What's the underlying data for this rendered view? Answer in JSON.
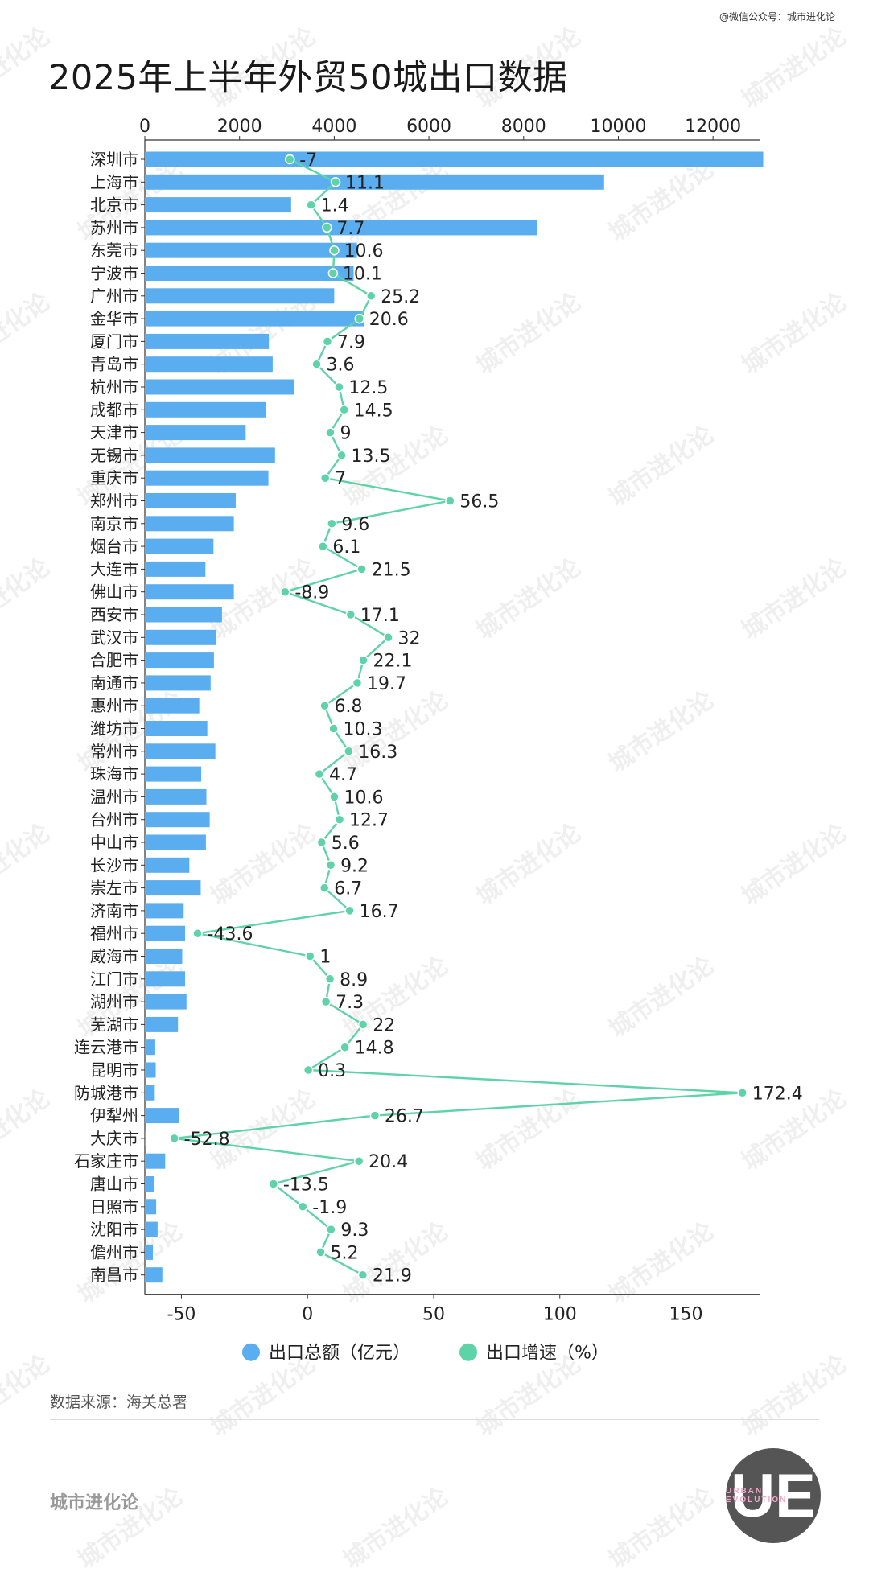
{
  "header": {
    "wechat": "@微信公众号：城市进化论",
    "title": "2025年上半年外贸50城出口数据"
  },
  "watermark_text": "城市进化论",
  "footer": {
    "source": "数据来源：海关总署",
    "brand": "城市进化论",
    "logo_text": "UE",
    "logo_sub": "URBAN EVOLUTION"
  },
  "colors": {
    "bar": "#5aaef0",
    "line": "#5fd3a8",
    "axis": "#333333",
    "text": "#222222"
  },
  "chart_data": {
    "type": "bar",
    "orientation": "horizontal",
    "title": "2025年上半年外贸50城出口数据",
    "categories": [
      "深圳市",
      "上海市",
      "北京市",
      "苏州市",
      "东莞市",
      "宁波市",
      "广州市",
      "金华市",
      "厦门市",
      "青岛市",
      "杭州市",
      "成都市",
      "天津市",
      "无锡市",
      "重庆市",
      "郑州市",
      "南京市",
      "烟台市",
      "大连市",
      "佛山市",
      "西安市",
      "武汉市",
      "合肥市",
      "南通市",
      "惠州市",
      "潍坊市",
      "常州市",
      "珠海市",
      "温州市",
      "台州市",
      "中山市",
      "长沙市",
      "崇左市",
      "济南市",
      "福州市",
      "威海市",
      "江门市",
      "湖州市",
      "芜湖市",
      "连云港市",
      "昆明市",
      "防城港市",
      "伊犁州",
      "大庆市",
      "石家庄市",
      "唐山市",
      "日照市",
      "沈阳市",
      "儋州市",
      "南昌市"
    ],
    "series": [
      {
        "name": "出口总额（亿元）",
        "axis": "top",
        "values": [
          13060,
          9700,
          3090,
          8280,
          4480,
          4410,
          4000,
          4630,
          2620,
          2700,
          3150,
          2560,
          2130,
          2750,
          2610,
          1920,
          1880,
          1450,
          1280,
          1880,
          1630,
          1500,
          1460,
          1390,
          1150,
          1320,
          1490,
          1190,
          1300,
          1370,
          1290,
          940,
          1180,
          820,
          850,
          790,
          850,
          880,
          700,
          220,
          230,
          210,
          720,
          30,
          430,
          200,
          240,
          270,
          170,
          370
        ]
      },
      {
        "name": "出口增速（%）",
        "axis": "bottom",
        "values": [
          -7,
          11.1,
          1.4,
          7.7,
          10.6,
          10.1,
          25.2,
          20.6,
          7.9,
          3.6,
          12.5,
          14.5,
          9,
          13.5,
          7,
          56.5,
          9.6,
          6.1,
          21.5,
          -8.9,
          17.1,
          32,
          22.1,
          19.7,
          6.8,
          10.3,
          16.3,
          4.7,
          10.6,
          12.7,
          5.6,
          9.2,
          6.7,
          16.7,
          -43.6,
          1,
          8.9,
          7.3,
          22,
          14.8,
          0.3,
          172.4,
          26.7,
          -52.8,
          20.4,
          -13.5,
          -1.9,
          9.3,
          5.2,
          21.9
        ]
      }
    ],
    "top_axis": {
      "ticks": [
        0,
        2000,
        4000,
        6000,
        8000,
        10000,
        12000
      ],
      "range": [
        0,
        13000
      ]
    },
    "bottom_axis": {
      "ticks": [
        -50,
        0,
        50,
        100,
        150
      ],
      "range": [
        -64.5,
        179.5
      ]
    },
    "legend": [
      "出口总额（亿元）",
      "出口增速（%）"
    ],
    "legend_position": "bottom-center",
    "grid": false
  }
}
